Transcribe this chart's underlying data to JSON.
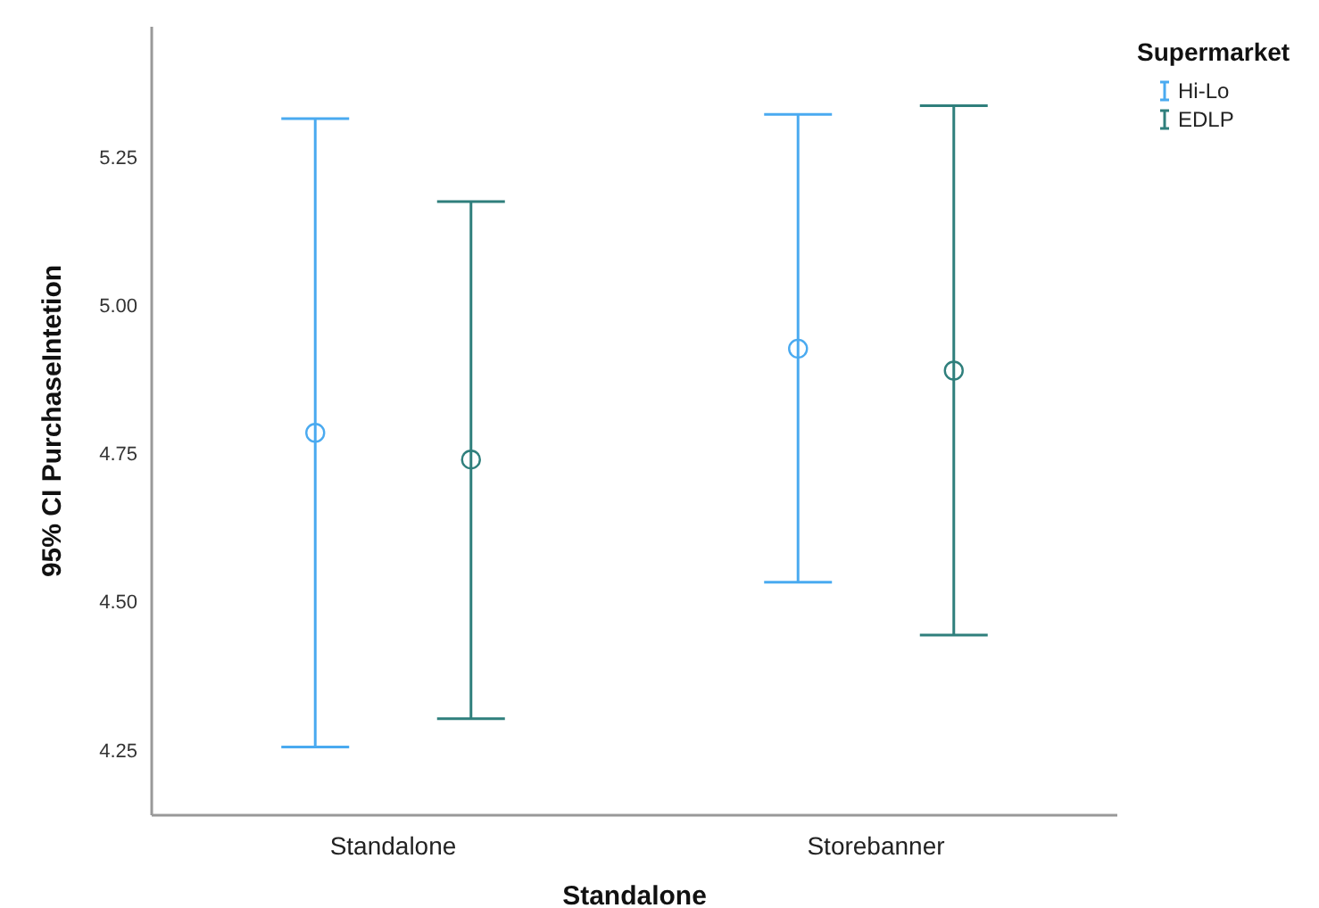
{
  "chart_data": {
    "type": "scatter",
    "xlabel": "Standalone",
    "ylabel": "95% CI PurchaseIntetion",
    "legend_title": "Supermarket",
    "categories": [
      "Standalone",
      "Storebanner"
    ],
    "series": [
      {
        "name": "Hi-Lo",
        "color": "#4aaaf0",
        "values": [
          4.785,
          4.927
        ],
        "errors": [
          [
            4.255,
            5.315
          ],
          [
            4.533,
            5.322
          ]
        ]
      },
      {
        "name": "EDLP",
        "color": "#2f7f7c",
        "values": [
          4.74,
          4.89
        ],
        "errors": [
          [
            4.303,
            5.175
          ],
          [
            4.444,
            5.337
          ]
        ]
      }
    ],
    "ylim": [
      4.14,
      5.47
    ],
    "yticks": [
      {
        "value": 4.25,
        "label": "4.25"
      },
      {
        "value": 4.5,
        "label": "4.50"
      },
      {
        "value": 4.75,
        "label": "4.75"
      },
      {
        "value": 5,
        "label": "5.00"
      },
      {
        "value": 5.25,
        "label": "5.25"
      }
    ],
    "marker": "circle",
    "legend": "top right",
    "grid": false
  }
}
